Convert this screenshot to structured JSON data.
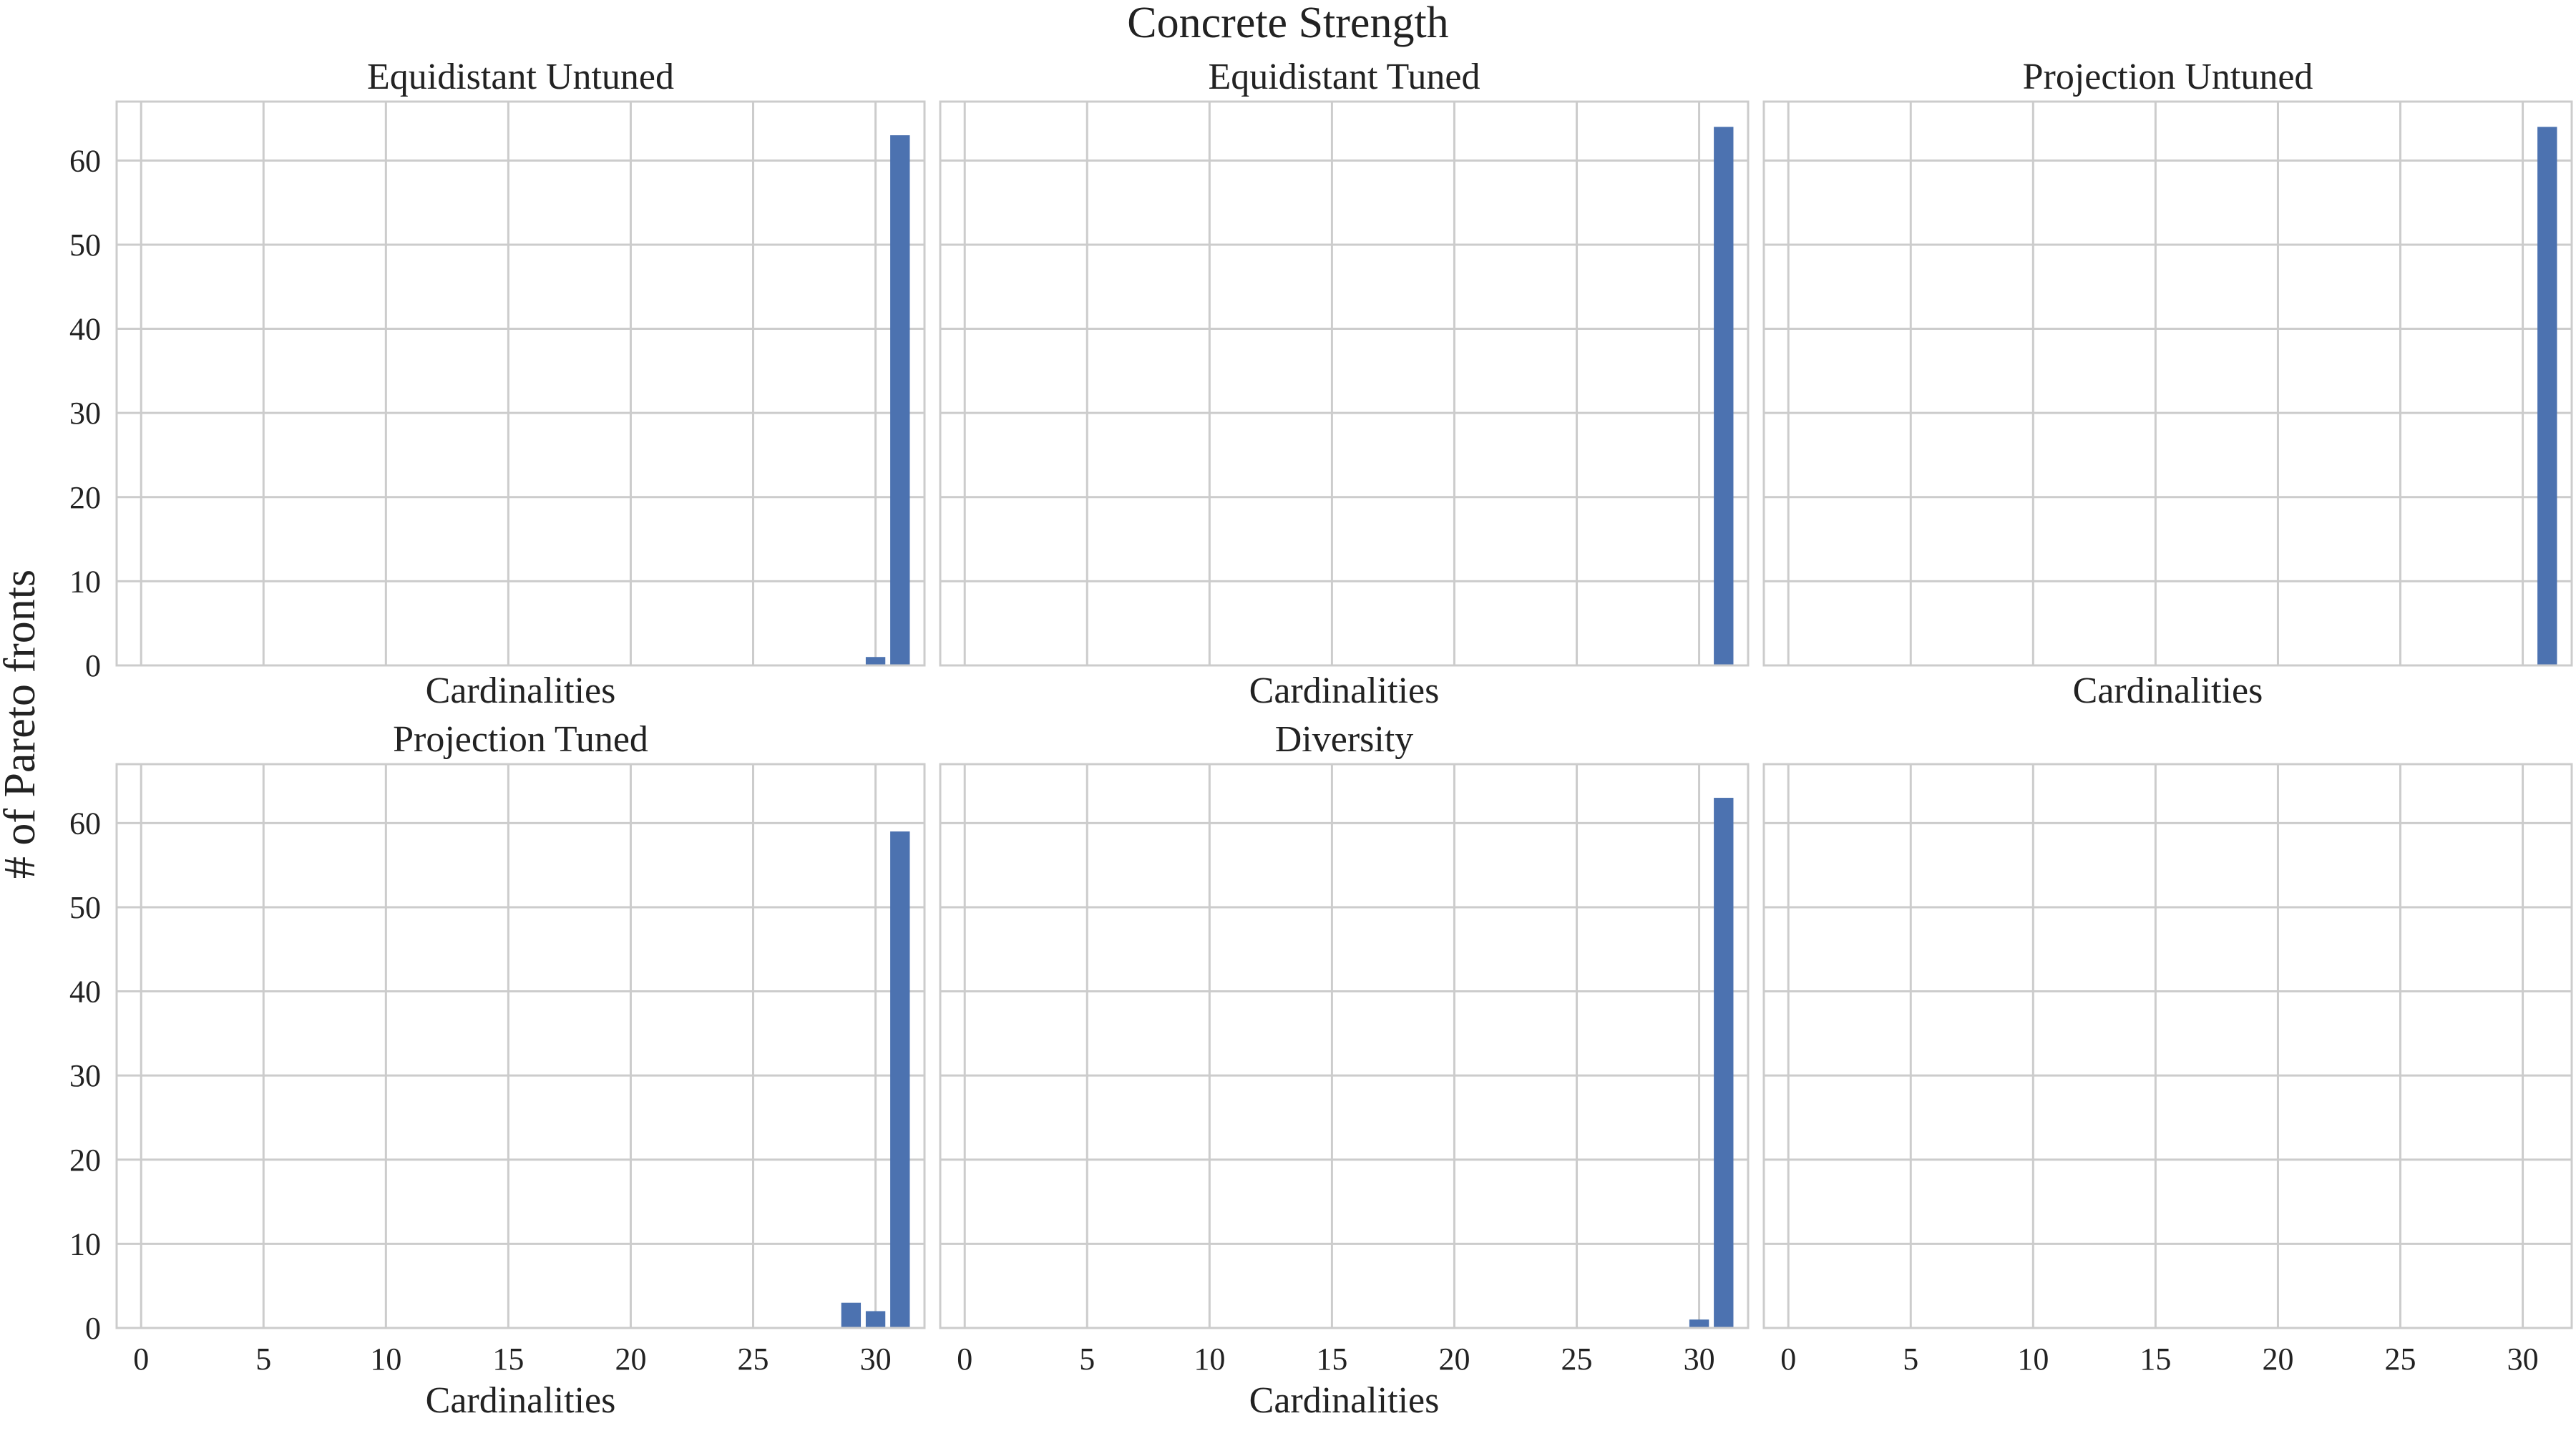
{
  "figure": {
    "title": "Concrete Strength",
    "ylabel": "# of Pareto fronts",
    "bar_color": "#4c72b0",
    "grid_color": "#cccccc"
  },
  "chart_data": [
    {
      "type": "bar",
      "title": "Equidistant Untuned",
      "xlabel": "Cardinalities",
      "ylabel": "# of Pareto fronts",
      "x": [
        30,
        31
      ],
      "values": [
        1,
        63
      ],
      "xlim": [
        -1,
        32
      ],
      "ylim": [
        0,
        67
      ],
      "xticks": [
        0,
        5,
        10,
        15,
        20,
        25,
        30
      ],
      "yticks": [
        0,
        10,
        20,
        30,
        40,
        50,
        60
      ],
      "grid": true
    },
    {
      "type": "bar",
      "title": "Equidistant Tuned",
      "xlabel": "Cardinalities",
      "ylabel": "",
      "x": [
        31
      ],
      "values": [
        64
      ],
      "xlim": [
        -1,
        32
      ],
      "ylim": [
        0,
        67
      ],
      "xticks": [
        0,
        5,
        10,
        15,
        20,
        25,
        30
      ],
      "yticks": [
        0,
        10,
        20,
        30,
        40,
        50,
        60
      ],
      "grid": true
    },
    {
      "type": "bar",
      "title": "Projection Untuned",
      "xlabel": "Cardinalities",
      "ylabel": "",
      "x": [
        31
      ],
      "values": [
        64
      ],
      "xlim": [
        -1,
        32
      ],
      "ylim": [
        0,
        67
      ],
      "xticks": [
        0,
        5,
        10,
        15,
        20,
        25,
        30
      ],
      "yticks": [
        0,
        10,
        20,
        30,
        40,
        50,
        60
      ],
      "grid": true
    },
    {
      "type": "bar",
      "title": "Projection Tuned",
      "xlabel": "Cardinalities",
      "ylabel": "# of Pareto fronts",
      "x": [
        29,
        30,
        31
      ],
      "values": [
        3,
        2,
        59
      ],
      "xlim": [
        -1,
        32
      ],
      "ylim": [
        0,
        67
      ],
      "xticks": [
        0,
        5,
        10,
        15,
        20,
        25,
        30
      ],
      "yticks": [
        0,
        10,
        20,
        30,
        40,
        50,
        60
      ],
      "grid": true
    },
    {
      "type": "bar",
      "title": "Diversity",
      "xlabel": "Cardinalities",
      "ylabel": "",
      "x": [
        30,
        31
      ],
      "values": [
        1,
        63
      ],
      "xlim": [
        -1,
        32
      ],
      "ylim": [
        0,
        67
      ],
      "xticks": [
        0,
        5,
        10,
        15,
        20,
        25,
        30
      ],
      "yticks": [
        0,
        10,
        20,
        30,
        40,
        50,
        60
      ],
      "grid": true
    },
    {
      "type": "bar",
      "title": "",
      "xlabel": "",
      "ylabel": "",
      "x": [],
      "values": [],
      "xlim": [
        -1,
        32
      ],
      "ylim": [
        0,
        67
      ],
      "xticks": [
        0,
        5,
        10,
        15,
        20,
        25,
        30
      ],
      "yticks": [
        0,
        10,
        20,
        30,
        40,
        50,
        60
      ],
      "grid": true
    }
  ]
}
